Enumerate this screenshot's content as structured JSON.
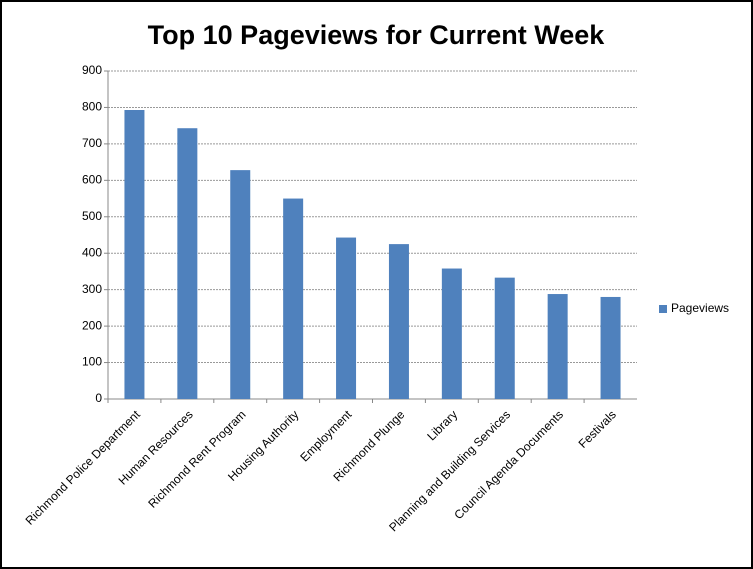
{
  "chart_data": {
    "type": "bar",
    "title": "Top 10 Pageviews for Current Week",
    "categories": [
      "Richmond Police Department",
      "Human Resources",
      "Richmond Rent Program",
      "Housing Authority",
      "Employment",
      "Richmond Plunge",
      "Library",
      "Planning and Building Services",
      "Council Agenda Documents",
      "Festivals"
    ],
    "series": [
      {
        "name": "Pageviews",
        "color": "#4f81bd",
        "values": [
          793,
          743,
          628,
          550,
          443,
          425,
          358,
          333,
          288,
          280
        ]
      }
    ],
    "ylim": [
      0,
      900
    ],
    "yticks": [
      0,
      100,
      200,
      300,
      400,
      500,
      600,
      700,
      800,
      900
    ],
    "grid": true,
    "legend": "right"
  }
}
